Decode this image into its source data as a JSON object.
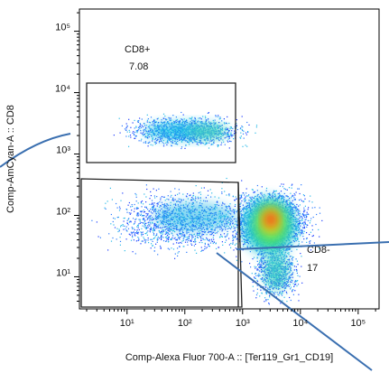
{
  "chart_data": {
    "type": "density",
    "x_label": "Comp-Alexa Fluor 700-A :: [Ter119_Gr1_CD19]",
    "y_label": "Comp-AmCyan-A :: CD8",
    "log_x": true,
    "log_y": true,
    "xlim": [
      1.5,
      230000
    ],
    "ylim": [
      3,
      230000
    ],
    "xticks": [
      {
        "value": 10,
        "label": "10¹"
      },
      {
        "value": 100,
        "label": "10²"
      },
      {
        "value": 1000,
        "label": "10³"
      },
      {
        "value": 10000,
        "label": "10⁴"
      },
      {
        "value": 100000,
        "label": "10⁵"
      }
    ],
    "yticks": [
      {
        "value": 10,
        "label": "10¹"
      },
      {
        "value": 100,
        "label": "10²"
      },
      {
        "value": 1000,
        "label": "10³"
      },
      {
        "value": 10000,
        "label": "10⁴"
      },
      {
        "value": 100000,
        "label": "10⁵"
      }
    ],
    "gates": [
      {
        "name": "CD8+",
        "value": 7.08
      },
      {
        "name": "CD8-",
        "value": 17.0
      }
    ]
  }
}
